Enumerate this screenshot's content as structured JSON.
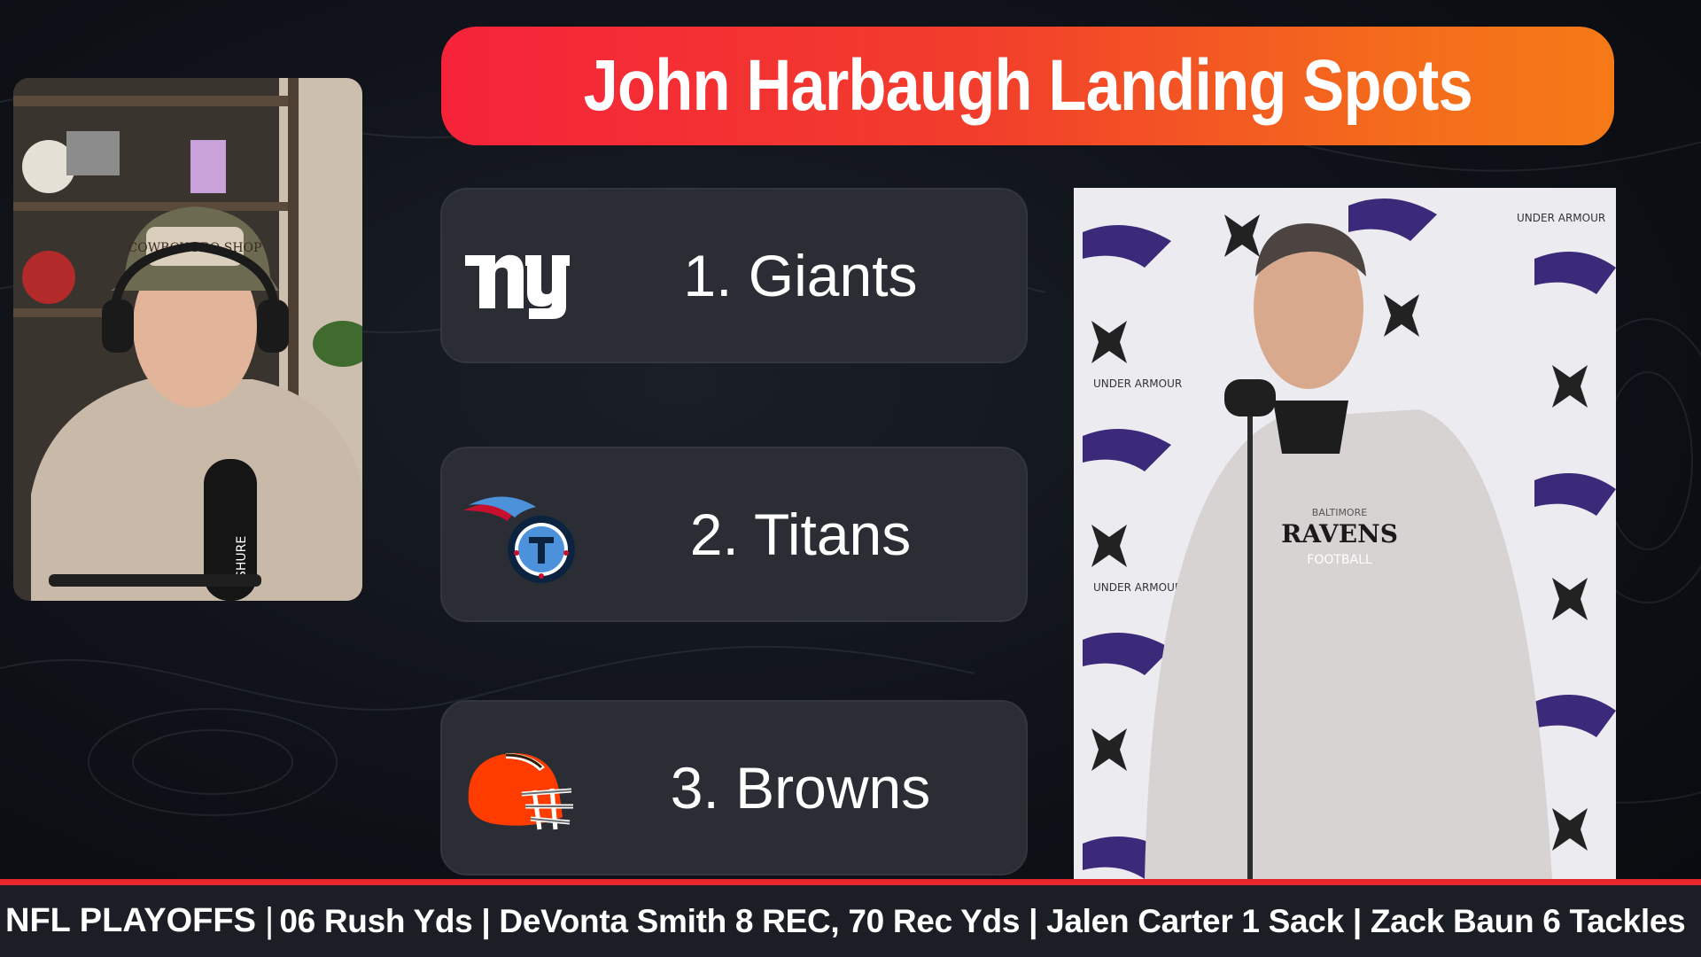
{
  "header": {
    "title": "John Harbaugh Landing Spots"
  },
  "rankings": [
    {
      "label": "1. Giants",
      "logo": "giants-ny-logo",
      "logo_color": "#ffffff"
    },
    {
      "label": "2. Titans",
      "logo": "titans-logo",
      "logo_color": "#4b92db"
    },
    {
      "label": "3. Browns",
      "logo": "browns-helmet-logo",
      "logo_color": "#ff3c00"
    }
  ],
  "coach_photo": {
    "backdrop_text": "UNDER ARMOUR",
    "hoodie_line1": "BALTIMORE",
    "hoodie_line2": "RAVENS",
    "hoodie_line3": "FOOTBALL"
  },
  "webcam": {
    "hat_text": "COWBOY PRO SHOP",
    "mic_brand": "SHURE"
  },
  "ticker": {
    "label": "NFL PLAYOFFS",
    "separator": "|",
    "text": "06 Rush Yds | DeVonta Smith 8 REC, 70 Rec Yds | Jalen Carter 1 Sack | Zack Baun 6 Tackles"
  },
  "colors": {
    "accent_red": "#e8272e",
    "banner_start": "#f5233a",
    "banner_end": "#f57a17",
    "card_bg": "#2a2d34",
    "ravens_purple": "#3b2a7a"
  }
}
